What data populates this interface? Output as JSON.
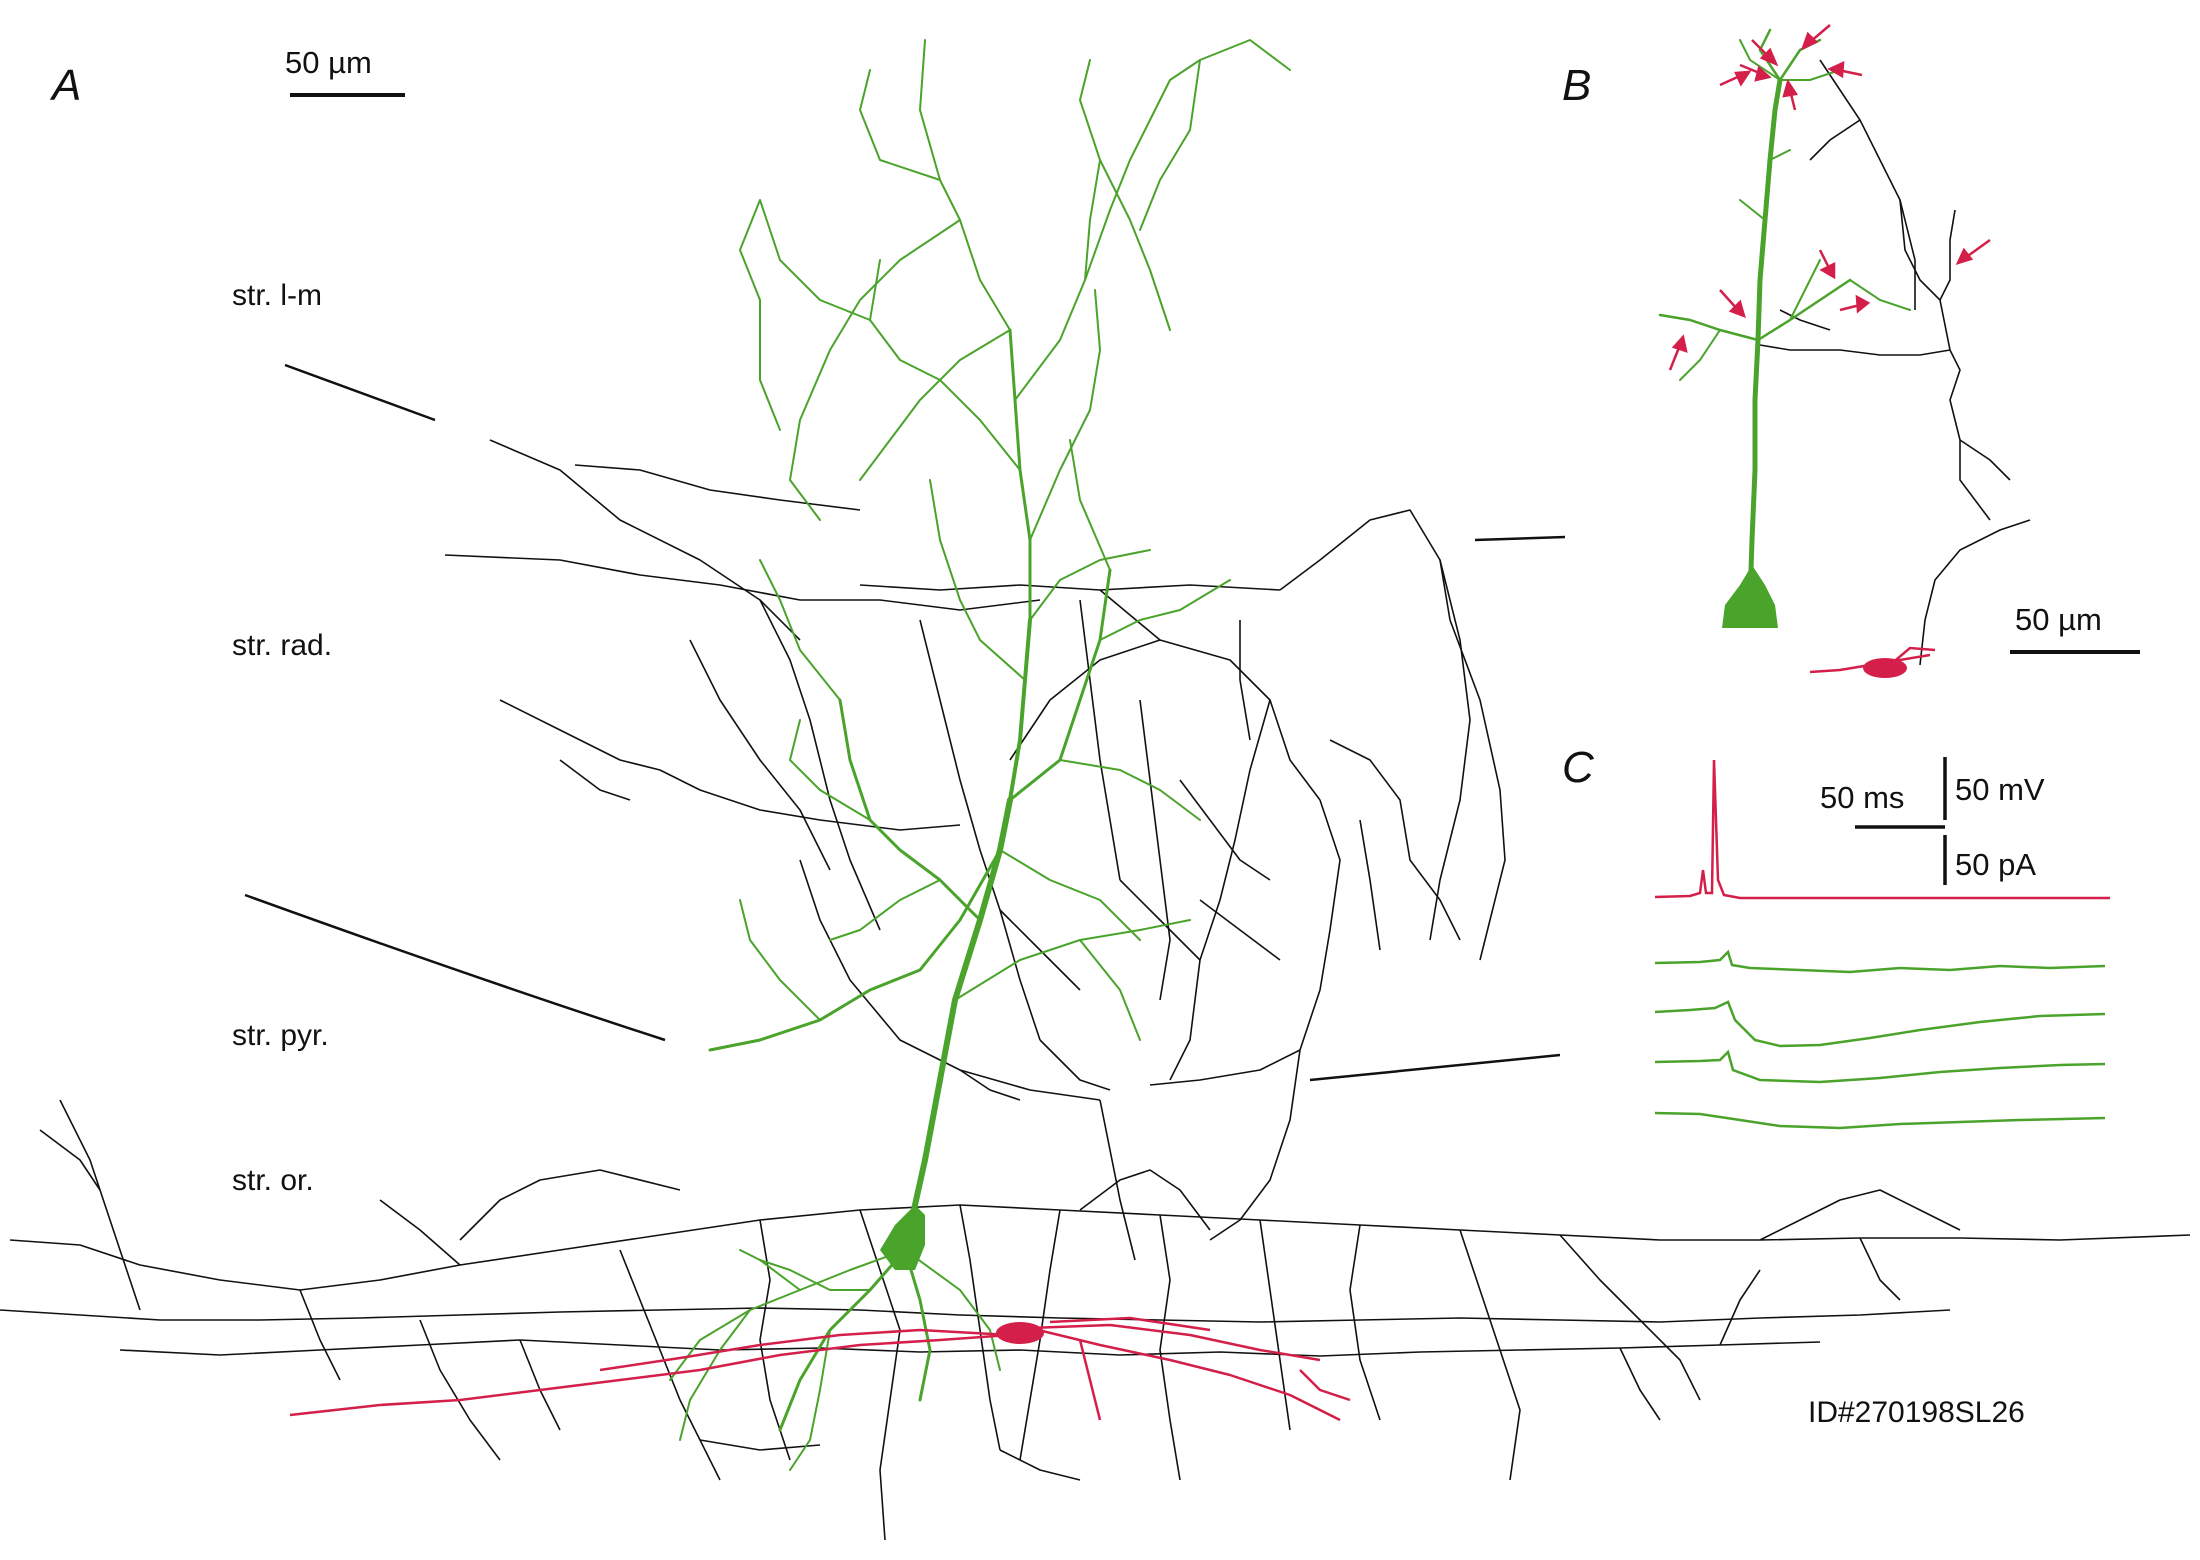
{
  "panel_a": {
    "letter": "A",
    "scale_bar": "50 µm",
    "layers": {
      "lm": "str. l-m",
      "rad": "str. rad.",
      "pyr": "str. pyr.",
      "or": "str. or."
    }
  },
  "panel_b": {
    "letter": "B",
    "scale_bar": "50 µm"
  },
  "panel_c": {
    "letter": "C",
    "time_scale": "50 ms",
    "voltage_scale": "50 mV",
    "current_scale": "50 pA"
  },
  "id_label": "ID#270198SL26",
  "colors": {
    "pyramidal_cell": "#4aa32b",
    "interneuron": "#d41f4a",
    "axon": "#111111",
    "arrow": "#d41f4a"
  }
}
